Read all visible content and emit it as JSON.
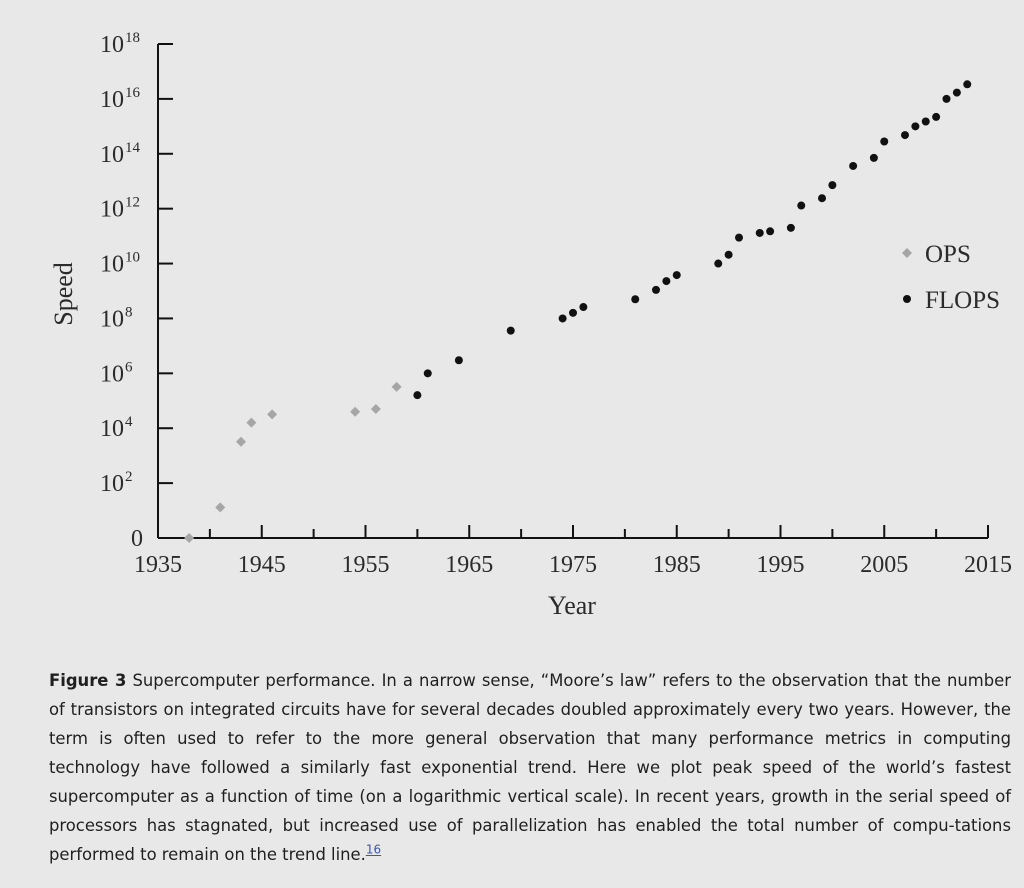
{
  "chart_data": {
    "type": "scatter",
    "xlabel": "Year",
    "ylabel": "Speed",
    "x_ticks": [
      "1935",
      "1945",
      "1955",
      "1965",
      "1975",
      "1985",
      "1995",
      "2005",
      "2015"
    ],
    "xlim": [
      1935,
      2015
    ],
    "y_scale": "log",
    "y_ticks": [
      {
        "exp": "18",
        "label": "10"
      },
      {
        "exp": "16",
        "label": "10"
      },
      {
        "exp": "14",
        "label": "10"
      },
      {
        "exp": "12",
        "label": "10"
      },
      {
        "exp": "10",
        "label": "10"
      },
      {
        "exp": "8",
        "label": "10"
      },
      {
        "exp": "6",
        "label": "10"
      },
      {
        "exp": "4",
        "label": "10"
      },
      {
        "exp": "2",
        "label": "10"
      },
      {
        "exp": "",
        "label": "0"
      }
    ],
    "ylim_log10": [
      0,
      18
    ],
    "legend_position": "right",
    "series": [
      {
        "name": "OPS",
        "marker": "diamond",
        "color": "#a6a6a6",
        "points": [
          {
            "x": 1938,
            "y": 1
          },
          {
            "x": 1941,
            "y": 13.0
          },
          {
            "x": 1943,
            "y": 3200.0
          },
          {
            "x": 1944,
            "y": 16000.0
          },
          {
            "x": 1946,
            "y": 32000.0
          },
          {
            "x": 1954,
            "y": 40000.0
          },
          {
            "x": 1956,
            "y": 50000.0
          },
          {
            "x": 1958,
            "y": 320000.0
          }
        ]
      },
      {
        "name": "FLOPS",
        "marker": "circle",
        "color": "#111111",
        "points": [
          {
            "x": 1960,
            "y": 160000.0
          },
          {
            "x": 1961,
            "y": 1000000.0
          },
          {
            "x": 1964,
            "y": 3000000.0
          },
          {
            "x": 1969,
            "y": 36000000.0
          },
          {
            "x": 1974,
            "y": 100000000.0
          },
          {
            "x": 1975,
            "y": 160000000.0
          },
          {
            "x": 1976,
            "y": 260000000.0
          },
          {
            "x": 1981,
            "y": 500000000.0
          },
          {
            "x": 1983,
            "y": 1100000000.0
          },
          {
            "x": 1984,
            "y": 2300000000.0
          },
          {
            "x": 1985,
            "y": 3800000000.0
          },
          {
            "x": 1989,
            "y": 10000000000.0
          },
          {
            "x": 1990,
            "y": 21000000000.0
          },
          {
            "x": 1991,
            "y": 88000000000.0
          },
          {
            "x": 1993,
            "y": 130000000000.0
          },
          {
            "x": 1994,
            "y": 150000000000.0
          },
          {
            "x": 1996,
            "y": 200000000000.0
          },
          {
            "x": 1997,
            "y": 1300000000000.0
          },
          {
            "x": 1999,
            "y": 2400000000000.0
          },
          {
            "x": 2000,
            "y": 7200000000000.0
          },
          {
            "x": 2002,
            "y": 36000000000000.0
          },
          {
            "x": 2004,
            "y": 71000000000000.0
          },
          {
            "x": 2005,
            "y": 280000000000000.0
          },
          {
            "x": 2007,
            "y": 480000000000000.0
          },
          {
            "x": 2008,
            "y": 1000000000000000.0
          },
          {
            "x": 2009,
            "y": 1500000000000000.0
          },
          {
            "x": 2010,
            "y": 2200000000000000.0
          },
          {
            "x": 2011,
            "y": 1e+16
          },
          {
            "x": 2012,
            "y": 1.7e+16
          },
          {
            "x": 2013,
            "y": 3.4e+16
          }
        ]
      }
    ]
  },
  "caption": {
    "label": "Figure 3",
    "text": " Supercomputer performance. In a narrow sense, “Moore’s law” refers to the observation that the number of transistors on integrated circuits have for several decades doubled approximately every two years. However, the term is often used to refer to the more general observation that many performance metrics in computing technology have followed a similarly fast exponential trend. Here we plot peak speed of the world’s fastest supercomputer as a function of time (on a logarithmic vertical scale). In recent years, growth in the serial speed of processors has stagnated, but increased use of parallelization has enabled the total number of compu-tations performed to remain on the trend line.",
    "footnote": "16"
  }
}
